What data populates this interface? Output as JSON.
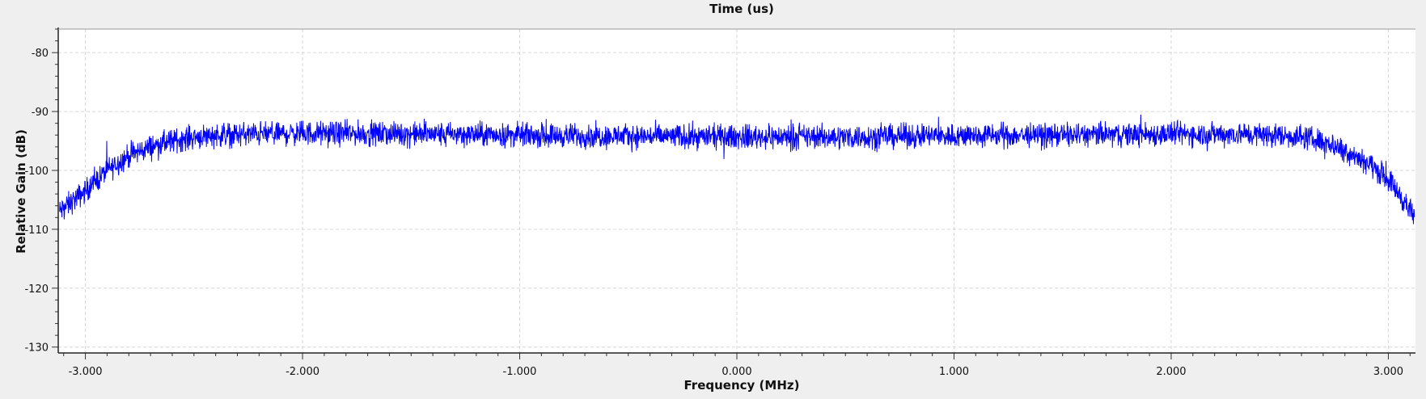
{
  "chart_data": {
    "type": "line",
    "title": "Time (us)",
    "xlabel": "Frequency (MHz)",
    "ylabel": "Relative Gain (dB)",
    "xlim": [
      -3.125,
      3.125
    ],
    "ylim": [
      -131,
      -76
    ],
    "xticks": [
      "-3.000",
      "-2.000",
      "-1.000",
      "0.000",
      "1.000",
      "2.000",
      "3.000"
    ],
    "xtick_values": [
      -3,
      -2,
      -1,
      0,
      1,
      2,
      3
    ],
    "yticks": [
      "-80",
      "-90",
      "-100",
      "-110",
      "-120",
      "-130"
    ],
    "ytick_values": [
      -80,
      -90,
      -100,
      -110,
      -120,
      -130
    ],
    "grid": true,
    "series": [
      {
        "color": "#0000ff",
        "x": [
          -3.12,
          -3.0,
          -2.9,
          -2.8,
          -2.7,
          -2.6,
          -2.5,
          -2.4,
          -2.2,
          -2.0,
          -1.5,
          -1.0,
          -0.5,
          0.0,
          0.5,
          1.0,
          1.5,
          2.0,
          2.3,
          2.5,
          2.6,
          2.7,
          2.8,
          2.9,
          3.0,
          3.05,
          3.12
        ],
        "values": [
          -107,
          -103.5,
          -100,
          -97.5,
          -96,
          -95,
          -94.3,
          -94,
          -93.8,
          -93.7,
          -93.8,
          -94,
          -94.2,
          -94.3,
          -94.3,
          -94.1,
          -94,
          -93.8,
          -93.8,
          -94,
          -94.3,
          -95,
          -96.5,
          -98.5,
          -101.5,
          -104,
          -108
        ]
      }
    ]
  }
}
